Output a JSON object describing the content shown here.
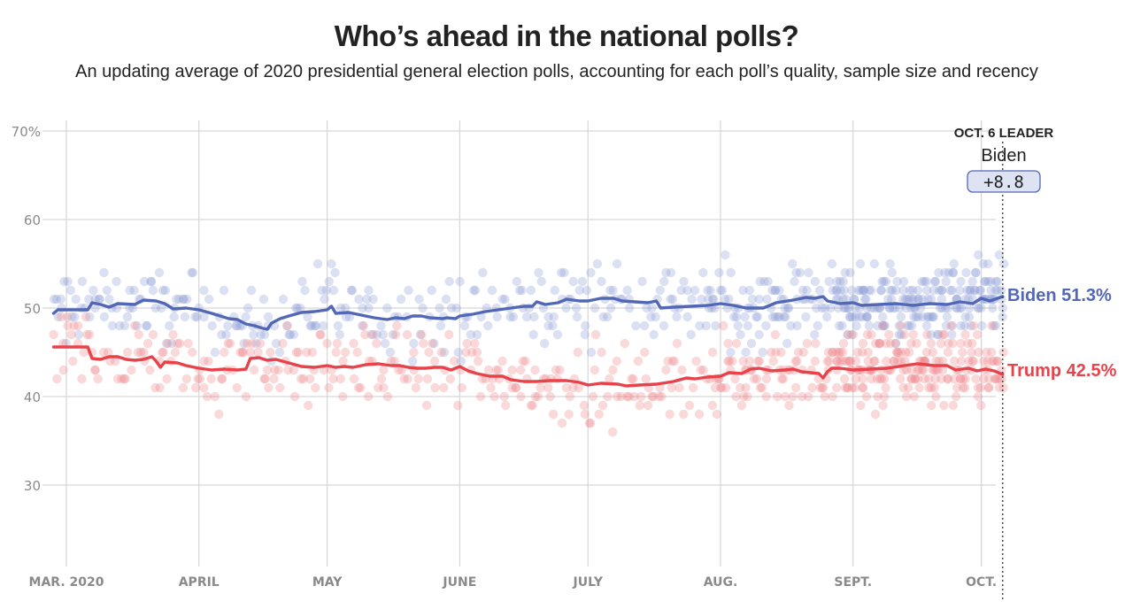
{
  "header": {
    "title": "Who’s ahead in the national polls?",
    "subtitle": "An updating average of 2020 presidential general election polls, accounting for each poll’s quality, sample size and recency"
  },
  "leader": {
    "label": "OCT. 6 LEADER",
    "name": "Biden",
    "margin": "+8.8"
  },
  "chart_data": {
    "type": "line",
    "title": "Who’s ahead in the national polls?",
    "subtitle": "An updating average of 2020 presidential general election polls, accounting for each poll’s quality, sample size and recency",
    "xlabel": "",
    "ylabel": "",
    "ylim": [
      21,
      71
    ],
    "xlim_days": [
      -3,
      221
    ],
    "x_origin": "2020-03-01",
    "grid": true,
    "legend": "inline-right",
    "y_ticks": [
      {
        "value": 70,
        "label": "70%"
      },
      {
        "value": 60,
        "label": "60"
      },
      {
        "value": 50,
        "label": "50"
      },
      {
        "value": 40,
        "label": "40"
      },
      {
        "value": 30,
        "label": "30"
      }
    ],
    "x_ticks": [
      {
        "day": 0,
        "label": "MAR. 2020"
      },
      {
        "day": 31,
        "label": "APRIL"
      },
      {
        "day": 61,
        "label": "MAY"
      },
      {
        "day": 92,
        "label": "JUNE"
      },
      {
        "day": 122,
        "label": "JULY"
      },
      {
        "day": 153,
        "label": "AUG."
      },
      {
        "day": 184,
        "label": "SEPT."
      },
      {
        "day": 214,
        "label": "OCT."
      }
    ],
    "current_day": 219,
    "series": [
      {
        "name": "Biden",
        "color": "#5268b6",
        "dot_color": "#8f9fd6",
        "end_label": "Biden 51.3%",
        "points": [
          [
            -3,
            49.4
          ],
          [
            -2,
            49.8
          ],
          [
            5,
            49.8
          ],
          [
            6,
            50.6
          ],
          [
            8,
            50.4
          ],
          [
            10,
            50.1
          ],
          [
            12,
            50.5
          ],
          [
            16,
            50.4
          ],
          [
            18,
            50.9
          ],
          [
            21,
            50.8
          ],
          [
            23,
            50.5
          ],
          [
            25,
            49.9
          ],
          [
            28,
            50.0
          ],
          [
            31,
            49.8
          ],
          [
            34,
            49.4
          ],
          [
            36,
            49.1
          ],
          [
            38,
            48.8
          ],
          [
            40,
            48.7
          ],
          [
            42,
            48.2
          ],
          [
            44,
            48.0
          ],
          [
            46,
            47.7
          ],
          [
            47,
            47.6
          ],
          [
            48,
            48.3
          ],
          [
            50,
            48.8
          ],
          [
            52,
            49.1
          ],
          [
            55,
            49.5
          ],
          [
            58,
            49.6
          ],
          [
            61,
            49.8
          ],
          [
            62,
            50.2
          ],
          [
            63,
            49.4
          ],
          [
            66,
            49.5
          ],
          [
            69,
            49.2
          ],
          [
            72,
            48.9
          ],
          [
            75,
            48.7
          ],
          [
            77,
            48.9
          ],
          [
            79,
            48.8
          ],
          [
            81,
            49.1
          ],
          [
            83,
            49.1
          ],
          [
            85,
            48.9
          ],
          [
            88,
            48.8
          ],
          [
            89,
            48.9
          ],
          [
            91,
            48.8
          ],
          [
            92,
            49.1
          ],
          [
            95,
            49.3
          ],
          [
            98,
            49.6
          ],
          [
            101,
            49.8
          ],
          [
            104,
            50.0
          ],
          [
            107,
            50.2
          ],
          [
            109,
            50.2
          ],
          [
            110,
            50.7
          ],
          [
            112,
            50.4
          ],
          [
            115,
            50.6
          ],
          [
            117,
            51.0
          ],
          [
            120,
            50.8
          ],
          [
            122,
            50.8
          ],
          [
            125,
            51.1
          ],
          [
            128,
            51.1
          ],
          [
            130,
            50.8
          ],
          [
            133,
            50.7
          ],
          [
            136,
            50.6
          ],
          [
            138,
            50.8
          ],
          [
            139,
            50.0
          ],
          [
            142,
            50.1
          ],
          [
            146,
            50.2
          ],
          [
            150,
            50.3
          ],
          [
            153,
            50.5
          ],
          [
            156,
            50.3
          ],
          [
            159,
            50.0
          ],
          [
            163,
            50.0
          ],
          [
            166,
            50.6
          ],
          [
            170,
            50.9
          ],
          [
            173,
            51.2
          ],
          [
            175,
            51.1
          ],
          [
            177,
            51.3
          ],
          [
            178,
            50.8
          ],
          [
            181,
            50.5
          ],
          [
            184,
            50.6
          ],
          [
            186,
            50.3
          ],
          [
            190,
            50.4
          ],
          [
            194,
            50.5
          ],
          [
            198,
            50.3
          ],
          [
            202,
            50.5
          ],
          [
            206,
            50.4
          ],
          [
            209,
            50.7
          ],
          [
            212,
            50.5
          ],
          [
            214,
            51.1
          ],
          [
            216,
            50.8
          ],
          [
            219,
            51.3
          ]
        ]
      },
      {
        "name": "Trump",
        "color": "#e8424a",
        "dot_color": "#f08a8f",
        "end_label": "Trump 42.5%",
        "points": [
          [
            -3,
            45.6
          ],
          [
            5,
            45.6
          ],
          [
            6,
            44.3
          ],
          [
            8,
            44.2
          ],
          [
            10,
            44.5
          ],
          [
            12,
            44.5
          ],
          [
            14,
            44.2
          ],
          [
            16,
            44.1
          ],
          [
            18,
            44.2
          ],
          [
            20,
            44.5
          ],
          [
            21,
            44.0
          ],
          [
            22,
            43.3
          ],
          [
            23,
            43.9
          ],
          [
            26,
            43.8
          ],
          [
            28,
            43.5
          ],
          [
            31,
            43.2
          ],
          [
            34,
            43.0
          ],
          [
            37,
            43.1
          ],
          [
            40,
            43.0
          ],
          [
            42,
            43.1
          ],
          [
            43,
            44.3
          ],
          [
            45,
            44.4
          ],
          [
            47,
            44.1
          ],
          [
            49,
            44.2
          ],
          [
            52,
            43.8
          ],
          [
            55,
            43.4
          ],
          [
            58,
            43.3
          ],
          [
            61,
            43.5
          ],
          [
            63,
            43.3
          ],
          [
            65,
            43.4
          ],
          [
            67,
            43.3
          ],
          [
            70,
            43.6
          ],
          [
            73,
            43.7
          ],
          [
            76,
            43.5
          ],
          [
            78,
            43.5
          ],
          [
            80,
            43.3
          ],
          [
            82,
            43.2
          ],
          [
            84,
            43.2
          ],
          [
            86,
            43.3
          ],
          [
            88,
            43.3
          ],
          [
            90,
            43.0
          ],
          [
            92,
            43.4
          ],
          [
            94,
            42.9
          ],
          [
            96,
            42.6
          ],
          [
            99,
            42.3
          ],
          [
            102,
            42.3
          ],
          [
            104,
            41.9
          ],
          [
            107,
            41.7
          ],
          [
            110,
            41.7
          ],
          [
            113,
            41.8
          ],
          [
            117,
            41.8
          ],
          [
            120,
            41.6
          ],
          [
            122,
            41.3
          ],
          [
            125,
            41.5
          ],
          [
            129,
            41.4
          ],
          [
            131,
            41.2
          ],
          [
            134,
            41.3
          ],
          [
            138,
            41.4
          ],
          [
            142,
            41.7
          ],
          [
            145,
            42.1
          ],
          [
            147,
            42.0
          ],
          [
            150,
            42.2
          ],
          [
            153,
            42.3
          ],
          [
            155,
            42.7
          ],
          [
            158,
            42.6
          ],
          [
            160,
            43.1
          ],
          [
            162,
            43.2
          ],
          [
            165,
            42.9
          ],
          [
            168,
            43.0
          ],
          [
            170,
            43.1
          ],
          [
            172,
            42.8
          ],
          [
            174,
            42.7
          ],
          [
            176,
            42.6
          ],
          [
            177,
            42.1
          ],
          [
            178,
            42.8
          ],
          [
            179,
            43.2
          ],
          [
            181,
            43.2
          ],
          [
            184,
            43.0
          ],
          [
            188,
            43.1
          ],
          [
            192,
            43.2
          ],
          [
            196,
            43.5
          ],
          [
            199,
            43.7
          ],
          [
            203,
            43.5
          ],
          [
            206,
            43.5
          ],
          [
            208,
            43.0
          ],
          [
            211,
            43.2
          ],
          [
            213,
            42.9
          ],
          [
            215,
            43.1
          ],
          [
            217,
            42.9
          ],
          [
            219,
            42.5
          ]
        ]
      }
    ]
  }
}
